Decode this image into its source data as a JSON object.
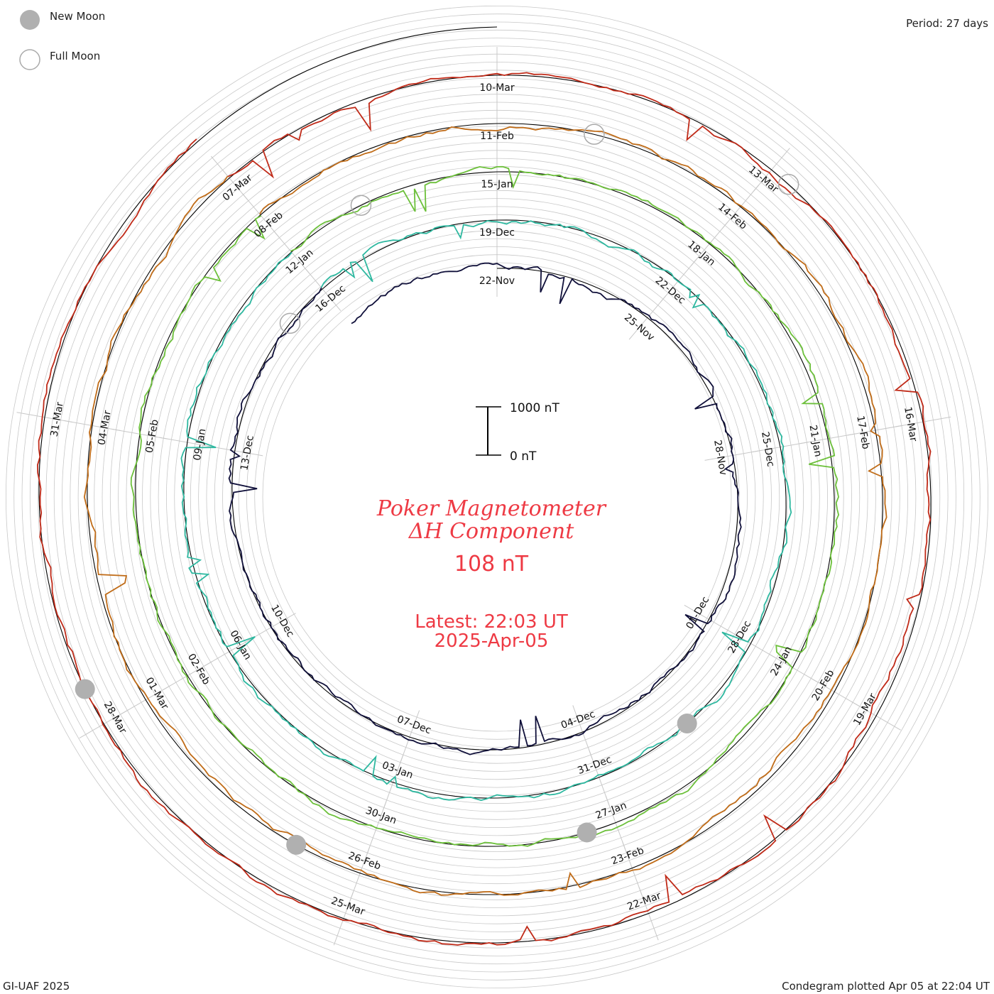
{
  "header": {
    "legend_new_moon": "New Moon",
    "legend_full_moon": "Full Moon",
    "period": "Period: 27 days"
  },
  "footer": {
    "credit": "GI-UAF 2025",
    "plotted": "Condegram plotted Apr 05 at 22:04 UT"
  },
  "center": {
    "title_line1": "Poker Magnetometer",
    "title_line2": "ΔH Component",
    "current_value": "108 nT",
    "latest_time": "Latest: 22:03 UT",
    "latest_date": "2025-Apr-05",
    "scale_top": "1000 nT",
    "scale_bottom": "0 nT"
  },
  "colors": {
    "moon_new": "#b0b0b0",
    "moon_full_stroke": "#aaaaaa",
    "grid": "#c8c8c8",
    "text_red": "#ee3a44",
    "rotations": [
      "#10103a",
      "#2a3aa8",
      "#2e86c0",
      "#2eb8a0",
      "#6cc03a",
      "#9cb828",
      "#c0a020",
      "#c06c18",
      "#c02a18",
      "#c81818"
    ]
  },
  "chart_data": {
    "type": "line",
    "period_days": 27,
    "date_labels": [
      {
        "text": "22-Nov",
        "angle": 0
      },
      {
        "text": "25-Nov",
        "angle": 40
      },
      {
        "text": "28-Nov",
        "angle": 80
      },
      {
        "text": "01-Dec",
        "angle": 120
      },
      {
        "text": "04-Dec",
        "angle": 160
      },
      {
        "text": "07-Dec",
        "angle": 200
      },
      {
        "text": "10-Dec",
        "angle": 240
      },
      {
        "text": "13-Dec",
        "angle": 280
      },
      {
        "text": "16-Dec",
        "angle": 320
      },
      {
        "text": "19-Dec",
        "angle": 360
      },
      {
        "text": "22-Dec",
        "angle": 400
      },
      {
        "text": "25-Dec",
        "angle": 440
      },
      {
        "text": "28-Dec",
        "angle": 480
      },
      {
        "text": "31-Dec",
        "angle": 520
      },
      {
        "text": "03-Jan",
        "angle": 560
      },
      {
        "text": "06-Jan",
        "angle": 600
      },
      {
        "text": "09-Jan",
        "angle": 640
      },
      {
        "text": "12-Jan",
        "angle": 680
      },
      {
        "text": "15-Jan",
        "angle": 720
      },
      {
        "text": "18-Jan",
        "angle": 760
      },
      {
        "text": "21-Jan",
        "angle": 800
      },
      {
        "text": "24-Jan",
        "angle": 840
      },
      {
        "text": "27-Jan",
        "angle": 880
      },
      {
        "text": "30-Jan",
        "angle": 920
      },
      {
        "text": "02-Feb",
        "angle": 960
      },
      {
        "text": "05-Feb",
        "angle": 1000
      },
      {
        "text": "08-Feb",
        "angle": 1040
      },
      {
        "text": "11-Feb",
        "angle": 1080
      },
      {
        "text": "14-Feb",
        "angle": 1120
      },
      {
        "text": "17-Feb",
        "angle": 1160
      },
      {
        "text": "20-Feb",
        "angle": 1200
      },
      {
        "text": "23-Feb",
        "angle": 1240
      },
      {
        "text": "26-Feb",
        "angle": 1280
      },
      {
        "text": "01-Mar",
        "angle": 1320
      },
      {
        "text": "04-Mar",
        "angle": 1360
      },
      {
        "text": "07-Mar",
        "angle": 1400
      },
      {
        "text": "10-Mar",
        "angle": 1440
      },
      {
        "text": "13-Mar",
        "angle": 1480
      },
      {
        "text": "16-Mar",
        "angle": 1520
      },
      {
        "text": "19-Mar",
        "angle": 1560
      },
      {
        "text": "22-Mar",
        "angle": 1600
      },
      {
        "text": "25-Mar",
        "angle": 1640
      },
      {
        "text": "28-Mar",
        "angle": 1680
      },
      {
        "text": "31-Mar",
        "angle": 1720
      }
    ],
    "moon_phases": [
      {
        "phase": "full",
        "angle": 310
      },
      {
        "phase": "new",
        "angle": 500
      },
      {
        "phase": "full",
        "angle": 695
      },
      {
        "phase": "new",
        "angle": 885
      },
      {
        "phase": "full",
        "angle": 1095
      },
      {
        "phase": "new",
        "angle": 1290
      },
      {
        "phase": "full",
        "angle": 1483
      },
      {
        "phase": "new",
        "angle": 1685
      }
    ],
    "scale_nT": [
      0,
      1000
    ]
  }
}
